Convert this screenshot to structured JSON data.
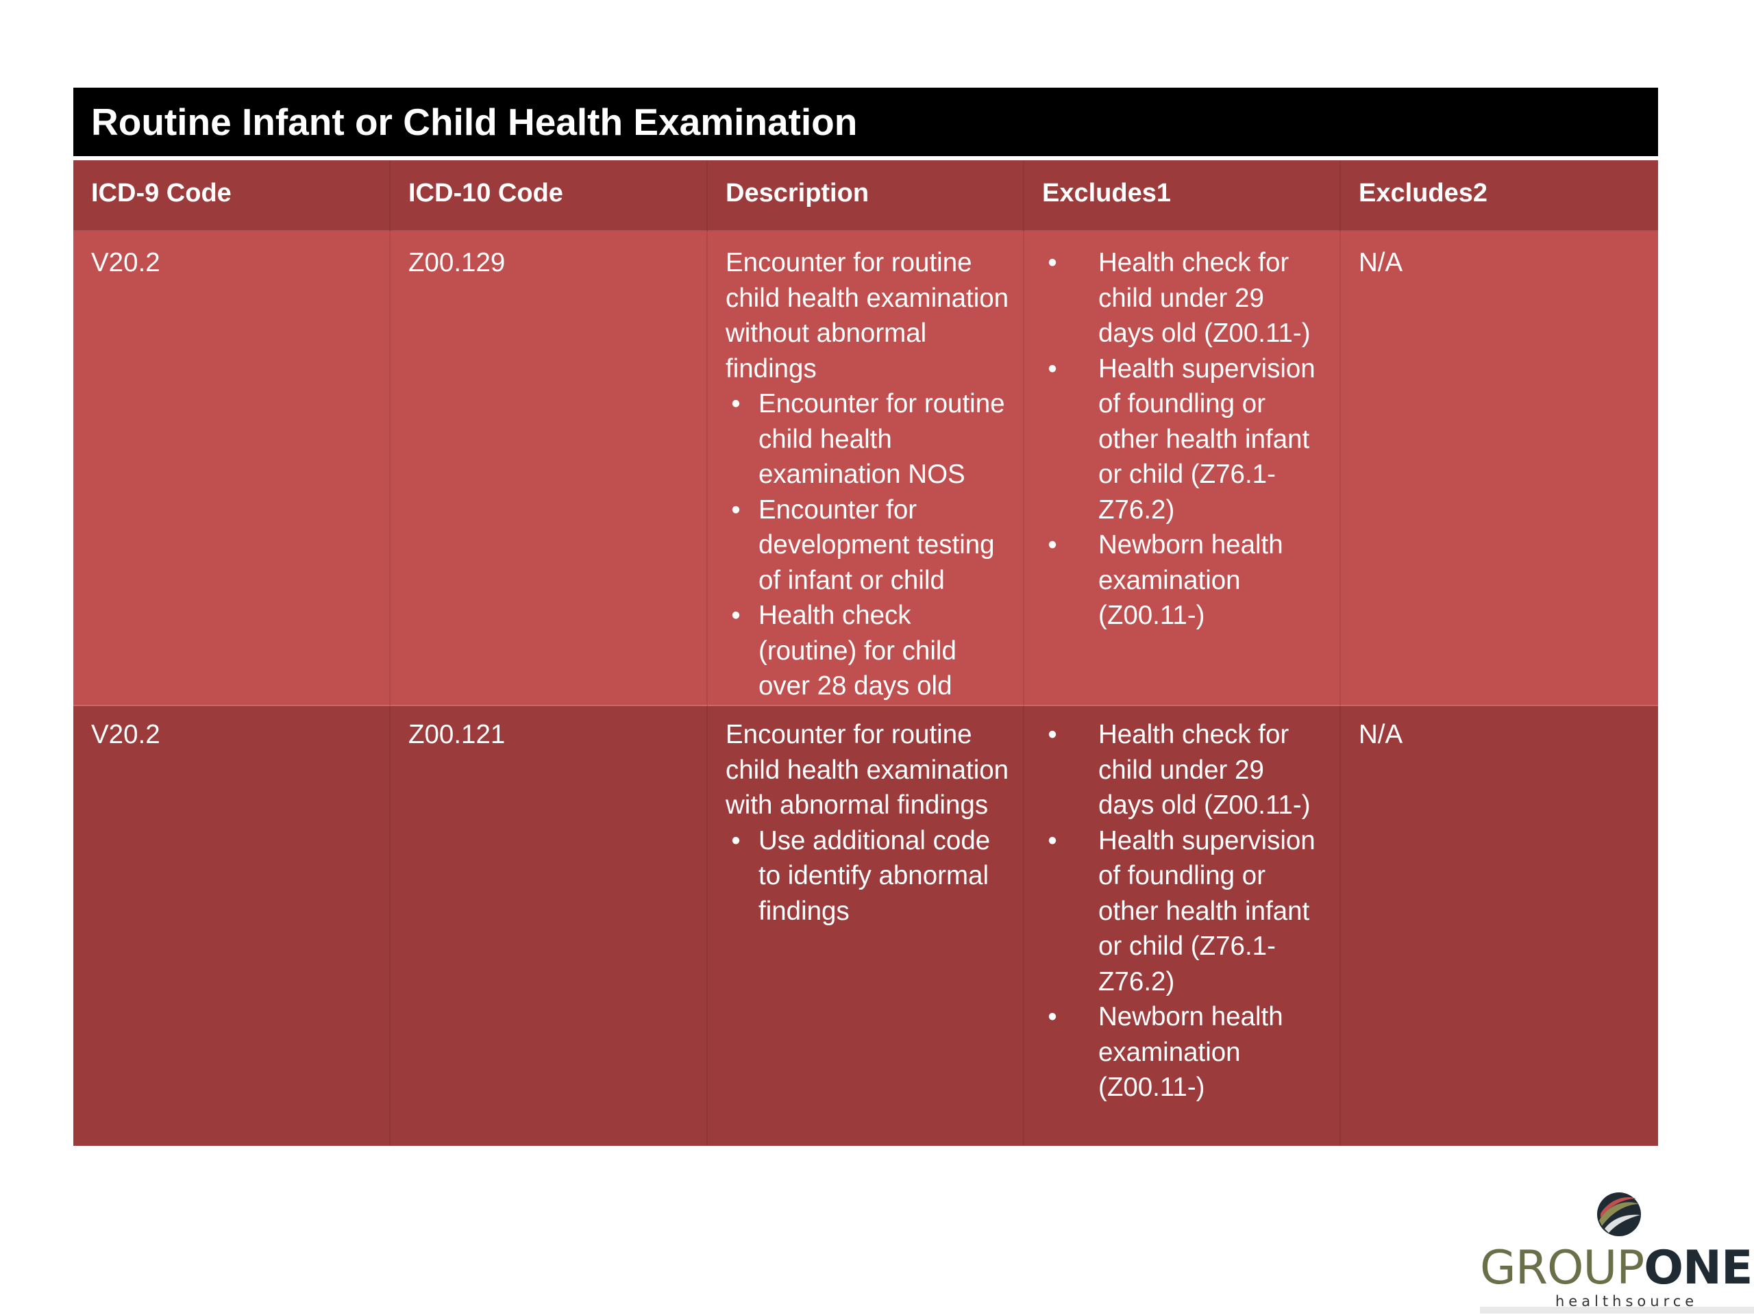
{
  "title": "Routine Infant or Child Health Examination",
  "columns": [
    "ICD-9 Code",
    "ICD-10 Code",
    "Description",
    "Excludes1",
    "Excludes2"
  ],
  "rows": [
    {
      "icd9": "V20.2",
      "icd10": "Z00.129",
      "description": "Encounter for routine child health examination without abnormal findings",
      "description_bullets": [
        "Encounter for routine child health examination NOS",
        "Encounter for development testing of infant or child",
        "Health check (routine) for child over 28 days old"
      ],
      "excludes1": [
        "Health check for child under 29 days old (Z00.11-)",
        "Health supervision of foundling or other health infant or child (Z76.1-Z76.2)",
        "Newborn health examination (Z00.11-)"
      ],
      "excludes2": "N/A"
    },
    {
      "icd9": "V20.2",
      "icd10": "Z00.121",
      "description": "Encounter for routine child health examination with abnormal findings",
      "description_bullets": [
        "Use additional code to identify abnormal findings"
      ],
      "excludes1": [
        "Health check for child under 29 days old (Z00.11-)",
        "Health supervision of foundling or other health infant or child (Z76.1-Z76.2)",
        "Newborn health examination (Z00.11-)"
      ],
      "excludes2": "N/A"
    }
  ],
  "bullet_char": "•",
  "logo": {
    "name_part1": "GROUP",
    "name_part2": "ONE",
    "subtitle": "healthsource",
    "icon": "swoosh-circle-icon"
  },
  "colors": {
    "title_bg": "#000000",
    "header_bg": "#9c3b3c",
    "row_light": "#c0504f",
    "row_dark": "#9c3b3c"
  }
}
